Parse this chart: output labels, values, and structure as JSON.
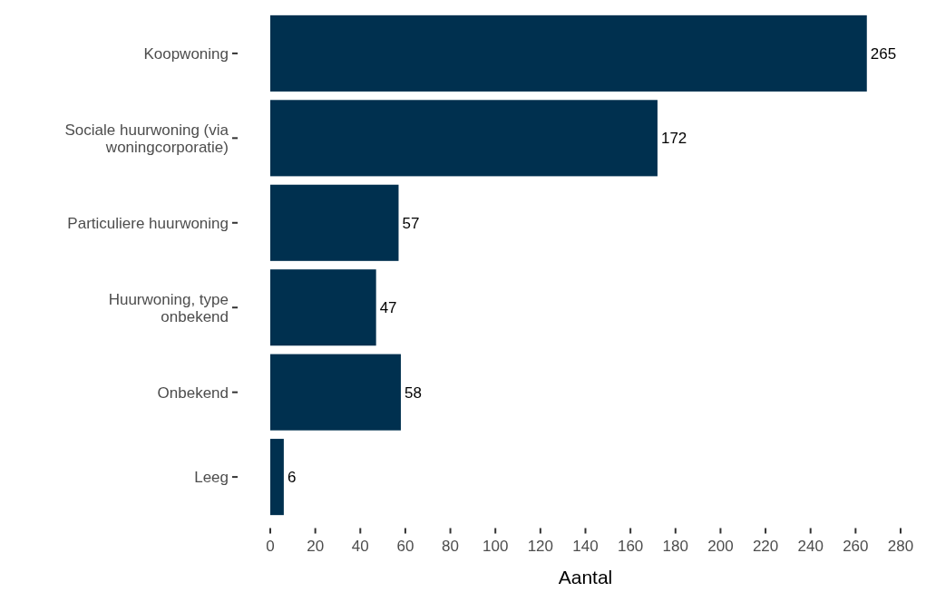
{
  "chart_data": {
    "type": "bar",
    "orientation": "horizontal",
    "xlabel": "Aantal",
    "categories": [
      "Koopwoning",
      "Sociale huurwoning (via\nwoningcorporatie)",
      "Particuliere huurwoning",
      "Huurwoning, type\nonbekend",
      "Onbekend",
      "Leeg"
    ],
    "values": [
      265,
      172,
      57,
      47,
      58,
      6
    ],
    "color": "#00304f",
    "xlim": [
      0,
      280
    ],
    "xticks": [
      0,
      20,
      40,
      60,
      80,
      100,
      120,
      140,
      160,
      180,
      200,
      220,
      240,
      260,
      280
    ],
    "data_labels": true
  }
}
